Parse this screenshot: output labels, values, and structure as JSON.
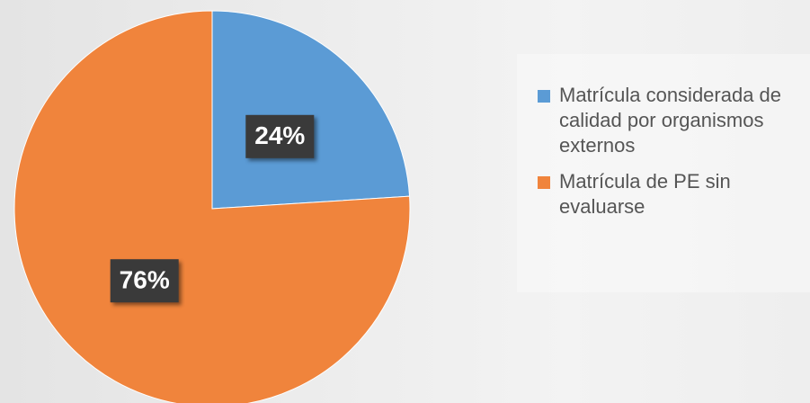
{
  "chart_data": {
    "type": "pie",
    "categories": [
      "Matrícula considerada de calidad por organismos externos",
      "Matrícula de PE sin evaluarse"
    ],
    "values": [
      24,
      76
    ],
    "value_labels": [
      "24%",
      "76%"
    ],
    "colors": [
      "#5b9bd5",
      "#f0843c"
    ],
    "legend": "right"
  }
}
